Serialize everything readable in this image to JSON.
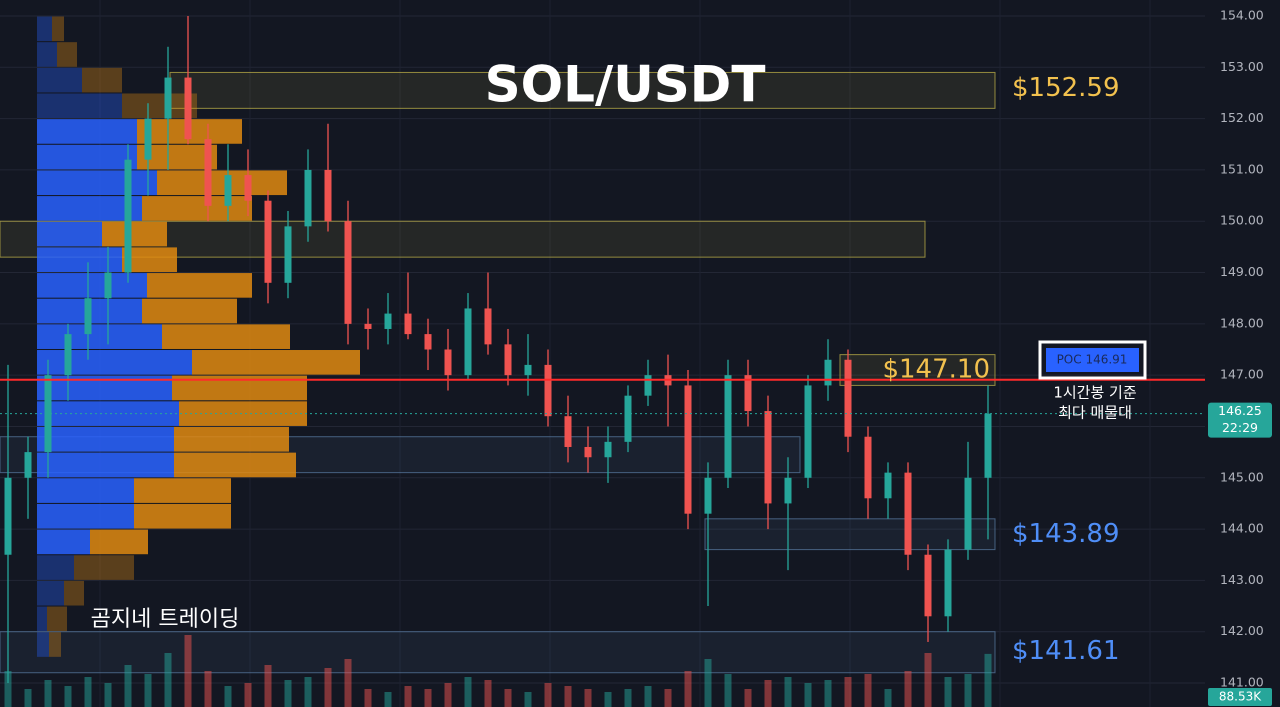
{
  "chart_data": {
    "type": "candlestick",
    "title": "SOL/USDT",
    "watermark": "곰지네 트레이딩",
    "up_color": "#26a69a",
    "down_color": "#ef5350",
    "ylim": [
      141,
      154
    ],
    "yticks": [
      {
        "value": 154,
        "label": "154.00"
      },
      {
        "value": 153,
        "label": "153.00"
      },
      {
        "value": 152,
        "label": "152.00"
      },
      {
        "value": 151,
        "label": "151.00"
      },
      {
        "value": 150,
        "label": "150.00"
      },
      {
        "value": 149,
        "label": "149.00"
      },
      {
        "value": 148,
        "label": "148.00"
      },
      {
        "value": 147,
        "label": "147.00"
      },
      {
        "value": 146,
        "label": "146.00"
      },
      {
        "value": 145,
        "label": "145.00"
      },
      {
        "value": 144,
        "label": "144.00"
      },
      {
        "value": 143,
        "label": "143.00"
      },
      {
        "value": 142,
        "label": "142.00"
      },
      {
        "value": 141,
        "label": "141.00"
      }
    ],
    "grid": true,
    "open": [
      143.5,
      145.0,
      145.5,
      147.0,
      147.8,
      148.5,
      149.0,
      151.2,
      152.0,
      152.8,
      151.6,
      150.3,
      150.9,
      150.4,
      148.8,
      149.9,
      151.0,
      150.0,
      148.0,
      147.9,
      148.2,
      147.8,
      147.5,
      147.0,
      148.3,
      147.6,
      147.0,
      147.2,
      146.2,
      145.6,
      145.4,
      145.7,
      146.6,
      147.0,
      146.8,
      144.3,
      145.0,
      147.0,
      146.3,
      144.5,
      145.0,
      146.8,
      147.3,
      145.8,
      144.6,
      145.1,
      143.5,
      142.3,
      143.6,
      145.0
    ],
    "high": [
      147.2,
      145.8,
      147.3,
      148.0,
      149.2,
      149.5,
      151.5,
      152.3,
      153.4,
      154.0,
      151.9,
      151.5,
      151.4,
      150.6,
      150.2,
      151.4,
      151.9,
      150.4,
      148.3,
      148.6,
      149.0,
      148.1,
      147.9,
      148.6,
      149.0,
      147.9,
      147.8,
      147.5,
      146.6,
      146.0,
      146.0,
      146.8,
      147.3,
      147.4,
      147.1,
      145.3,
      147.3,
      147.3,
      146.6,
      145.4,
      147.0,
      147.7,
      147.5,
      146.0,
      145.3,
      145.3,
      143.7,
      143.8,
      145.7,
      146.8
    ],
    "low": [
      141.0,
      144.2,
      145.0,
      146.5,
      147.3,
      147.6,
      148.8,
      150.5,
      151.0,
      151.5,
      150.0,
      150.0,
      150.1,
      148.4,
      148.5,
      149.6,
      149.8,
      147.6,
      147.5,
      147.6,
      147.7,
      147.1,
      146.7,
      146.9,
      147.4,
      146.8,
      146.6,
      146.0,
      145.3,
      145.1,
      144.9,
      145.5,
      146.4,
      146.0,
      144.0,
      142.5,
      144.8,
      146.0,
      144.0,
      143.2,
      144.8,
      146.5,
      145.5,
      144.2,
      144.2,
      143.2,
      141.8,
      142.0,
      143.4,
      143.8
    ],
    "close": [
      145.0,
      145.5,
      147.0,
      147.8,
      148.5,
      149.0,
      151.2,
      152.0,
      152.8,
      151.6,
      150.3,
      150.9,
      150.4,
      148.8,
      149.9,
      151.0,
      150.0,
      148.0,
      147.9,
      148.2,
      147.8,
      147.5,
      147.0,
      148.3,
      147.6,
      147.0,
      147.2,
      146.2,
      145.6,
      145.4,
      145.7,
      146.6,
      147.0,
      146.8,
      144.3,
      145.0,
      147.0,
      146.3,
      144.5,
      145.0,
      146.8,
      147.3,
      145.8,
      144.6,
      145.1,
      143.5,
      142.3,
      143.6,
      145.0,
      146.25
    ],
    "volume": [
      60,
      30,
      45,
      35,
      50,
      40,
      70,
      55,
      90,
      120,
      60,
      35,
      40,
      70,
      45,
      50,
      65,
      80,
      30,
      25,
      35,
      30,
      40,
      50,
      45,
      30,
      25,
      40,
      35,
      30,
      25,
      30,
      35,
      30,
      60,
      80,
      55,
      30,
      45,
      50,
      40,
      45,
      50,
      55,
      30,
      60,
      90,
      50,
      55,
      88.53
    ],
    "volume_label": "88.53K",
    "last_price": 146.25,
    "countdown": "22:29",
    "volume_profile": {
      "levels": [
        153.75,
        153.25,
        152.75,
        152.25,
        151.75,
        151.25,
        150.75,
        150.25,
        149.75,
        149.25,
        148.75,
        148.25,
        147.75,
        147.25,
        146.75,
        146.25,
        145.75,
        145.25,
        144.75,
        144.25,
        143.75,
        143.25,
        142.75,
        142.25,
        141.75
      ],
      "buy": [
        15,
        20,
        45,
        85,
        100,
        100,
        120,
        105,
        65,
        85,
        110,
        105,
        125,
        155,
        135,
        142,
        137,
        137,
        97,
        97,
        53,
        37,
        27,
        10,
        12
      ],
      "sell": [
        12,
        20,
        40,
        75,
        105,
        80,
        130,
        110,
        65,
        55,
        105,
        95,
        128,
        168,
        135,
        128,
        115,
        122,
        97,
        97,
        58,
        60,
        20,
        20,
        12
      ],
      "buy_color": "#2962ff",
      "sell_color": "#e08a10"
    },
    "zones": [
      {
        "top": 152.9,
        "bottom": 152.2,
        "color": "#c8b94a"
      },
      {
        "top": 150.0,
        "bottom": 149.3,
        "color": "#c8b94a"
      },
      {
        "top": 147.4,
        "bottom": 146.8,
        "color": "#c8b94a"
      },
      {
        "top": 145.8,
        "bottom": 145.1,
        "color": "#5b7fa6"
      },
      {
        "top": 144.2,
        "bottom": 143.6,
        "color": "#5b7fa6"
      },
      {
        "top": 142.0,
        "bottom": 141.2,
        "color": "#5b7fa6"
      }
    ],
    "levels": [
      {
        "value": 152.59,
        "label": "$152.59",
        "color": "#f2c14e"
      },
      {
        "value": 147.1,
        "label": "$147.10",
        "color": "#f2c14e"
      },
      {
        "value": 143.89,
        "label": "$143.89",
        "color": "#4f8ef7"
      },
      {
        "value": 141.61,
        "label": "$141.61",
        "color": "#4f8ef7"
      }
    ],
    "poc": {
      "value": 146.91,
      "label": "POC 146.91",
      "color": "#ff2a2a"
    },
    "annotation": [
      "1시간봉 기준",
      "최다 매물대"
    ]
  }
}
